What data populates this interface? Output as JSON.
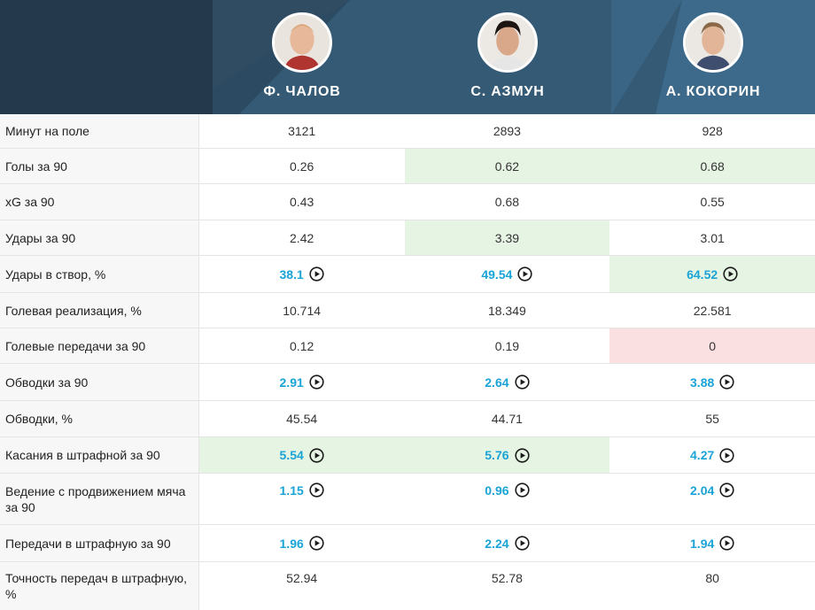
{
  "players": [
    {
      "name": "Ф. ЧАЛОВ",
      "avatar": "player-photo-chalov"
    },
    {
      "name": "С. АЗМУН",
      "avatar": "player-photo-azmun"
    },
    {
      "name": "А. КОКОРИН",
      "avatar": "player-photo-kokorin"
    }
  ],
  "colors": {
    "header_bg": "#2f4f67",
    "link": "#1aa3d6",
    "highlight_best": "#e6f4e3",
    "highlight_worst": "#fbe0e1"
  },
  "rows": [
    {
      "label": "Минут на поле",
      "values": [
        "3121",
        "2893",
        "928"
      ],
      "linked": false,
      "highlight": [
        "",
        "",
        ""
      ]
    },
    {
      "label": "Голы за 90",
      "values": [
        "0.26",
        "0.62",
        "0.68"
      ],
      "linked": false,
      "highlight": [
        "",
        "green",
        "green"
      ]
    },
    {
      "label": "xG за 90",
      "values": [
        "0.43",
        "0.68",
        "0.55"
      ],
      "linked": false,
      "highlight": [
        "",
        "",
        ""
      ]
    },
    {
      "label": "Удары за 90",
      "values": [
        "2.42",
        "3.39",
        "3.01"
      ],
      "linked": false,
      "highlight": [
        "",
        "green",
        ""
      ]
    },
    {
      "label": "Удары в створ, %",
      "values": [
        "38.1",
        "49.54",
        "64.52"
      ],
      "linked": true,
      "highlight": [
        "",
        "",
        "green"
      ]
    },
    {
      "label": "Голевая реализация, %",
      "values": [
        "10.714",
        "18.349",
        "22.581"
      ],
      "linked": false,
      "highlight": [
        "",
        "",
        ""
      ]
    },
    {
      "label": "Голевые передачи за 90",
      "values": [
        "0.12",
        "0.19",
        "0"
      ],
      "linked": false,
      "highlight": [
        "",
        "",
        "red"
      ]
    },
    {
      "label": "Обводки за 90",
      "values": [
        "2.91",
        "2.64",
        "3.88"
      ],
      "linked": true,
      "highlight": [
        "",
        "",
        ""
      ]
    },
    {
      "label": "Обводки, %",
      "values": [
        "45.54",
        "44.71",
        "55"
      ],
      "linked": false,
      "highlight": [
        "",
        "",
        ""
      ]
    },
    {
      "label": "Касания в штрафной за 90",
      "values": [
        "5.54",
        "5.76",
        "4.27"
      ],
      "linked": true,
      "highlight": [
        "green",
        "green",
        ""
      ]
    },
    {
      "label": "Ведение с продвижением мяча за 90",
      "values": [
        "1.15",
        "0.96",
        "2.04"
      ],
      "linked": true,
      "highlight": [
        "",
        "",
        ""
      ]
    },
    {
      "label": "Передачи в штрафную за 90",
      "values": [
        "1.96",
        "2.24",
        "1.94"
      ],
      "linked": true,
      "highlight": [
        "",
        "",
        ""
      ]
    },
    {
      "label": "Точность передач в штрафную, %",
      "values": [
        "52.94",
        "52.78",
        "80"
      ],
      "linked": false,
      "highlight": [
        "",
        "",
        ""
      ]
    }
  ]
}
